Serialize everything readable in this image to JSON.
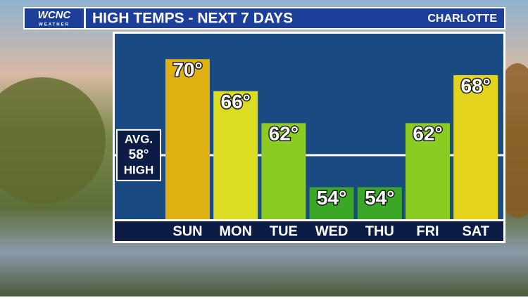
{
  "chart_data": {
    "type": "bar",
    "brand": "WCNC",
    "brand_sub": "WEATHER",
    "title": "HIGH TEMPS - NEXT 7 DAYS",
    "location": "CHARLOTTE",
    "categories": [
      "SUN",
      "MON",
      "TUE",
      "WED",
      "THU",
      "FRI",
      "SAT"
    ],
    "values": [
      70,
      66,
      62,
      54,
      54,
      62,
      68
    ],
    "value_labels": [
      "70°",
      "66°",
      "62°",
      "54°",
      "54°",
      "62°",
      "68°"
    ],
    "colors": [
      "#dfb012",
      "#dcdc22",
      "#8ccb22",
      "#3aa826",
      "#3aa826",
      "#8ccb22",
      "#e4d41e"
    ],
    "ylim": [
      50,
      73
    ],
    "average_line": {
      "value": 58,
      "label_top": "AVG.",
      "label": "58°",
      "label_bottom": "HIGH"
    }
  }
}
